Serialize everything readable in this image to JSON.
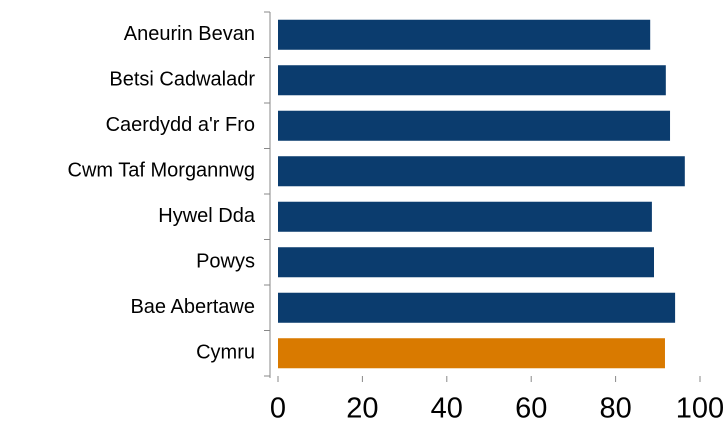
{
  "chart_data": {
    "type": "hbar",
    "categories": [
      "Aneurin Bevan",
      "Betsi Cadwaladr",
      "Caerdydd a'r Fro",
      "Cwm Taf Morgannwg",
      "Hywel Dda",
      "Powys",
      "Bae Abertawe",
      "Cymru"
    ],
    "values": [
      88.2,
      91.9,
      92.9,
      96.4,
      88.6,
      89.1,
      94.1,
      91.7
    ],
    "colors": [
      "#0b3c6e",
      "#0b3c6e",
      "#0b3c6e",
      "#0b3c6e",
      "#0b3c6e",
      "#0b3c6e",
      "#0b3c6e",
      "#d97a00"
    ],
    "xlim": [
      0,
      100
    ],
    "xticks": [
      0,
      20,
      40,
      60,
      80,
      100
    ],
    "grid": false
  }
}
